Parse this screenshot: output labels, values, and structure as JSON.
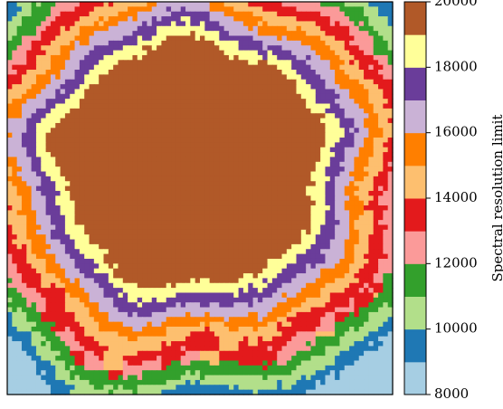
{
  "chart_data": {
    "type": "heatmap",
    "title": "",
    "xlabel": "",
    "ylabel": "",
    "colorbar": {
      "label": "Spectral resolution limit",
      "range": [
        8000,
        20000
      ],
      "ticks": [
        "8000",
        "10000",
        "12000",
        "14000",
        "16000",
        "18000",
        "20000"
      ],
      "bins": [
        {
          "from": 8000,
          "to": 9000,
          "color": "#a6cee3"
        },
        {
          "from": 9000,
          "to": 10000,
          "color": "#1f78b4"
        },
        {
          "from": 10000,
          "to": 11000,
          "color": "#b2df8a"
        },
        {
          "from": 11000,
          "to": 12000,
          "color": "#33a02c"
        },
        {
          "from": 12000,
          "to": 13000,
          "color": "#fb9a99"
        },
        {
          "from": 13000,
          "to": 14000,
          "color": "#e31a1c"
        },
        {
          "from": 14000,
          "to": 15000,
          "color": "#fdbf6f"
        },
        {
          "from": 15000,
          "to": 16000,
          "color": "#ff7f00"
        },
        {
          "from": 16000,
          "to": 17000,
          "color": "#cab2d6"
        },
        {
          "from": 17000,
          "to": 18000,
          "color": "#6a3d9a"
        },
        {
          "from": 18000,
          "to": 19000,
          "color": "#ffff99"
        },
        {
          "from": 19000,
          "to": 20000,
          "color": "#b15928"
        }
      ]
    },
    "field": {
      "description_of_values": "resolution limit values are highest at the central plateau and decrease outward toward the corners",
      "center_value": 20000,
      "corner_value": 8500
    },
    "grid": false
  }
}
